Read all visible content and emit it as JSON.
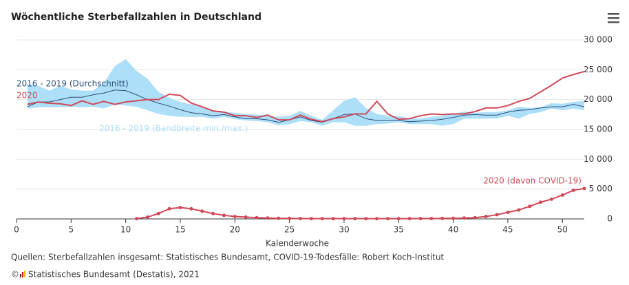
{
  "chart_data": {
    "type": "line",
    "title": "Wöchentliche Sterbefallzahlen in Deutschland",
    "xlabel": "Kalenderwoche",
    "source": "Quellen: Sterbefallzahlen insgesamt: Statistisches Bundesamt, COVID-19-Todesfälle: Robert Koch-Institut",
    "copyright_symbol": "©",
    "credit": "Statistisches Bundesamt (Destatis), 2021",
    "x": [
      1,
      2,
      3,
      4,
      5,
      6,
      7,
      8,
      9,
      10,
      11,
      12,
      13,
      14,
      15,
      16,
      17,
      18,
      19,
      20,
      21,
      22,
      23,
      24,
      25,
      26,
      27,
      28,
      29,
      30,
      31,
      32,
      33,
      34,
      35,
      36,
      37,
      38,
      39,
      40,
      41,
      42,
      43,
      44,
      45,
      46,
      47,
      48,
      49,
      50,
      51,
      52
    ],
    "xlim": [
      0,
      52
    ],
    "xticks": [
      0,
      5,
      10,
      15,
      20,
      25,
      30,
      35,
      40,
      45,
      50
    ],
    "ylim": [
      0,
      30000
    ],
    "yticks": [
      0,
      {
        "value": 5000,
        "label": "5 000"
      },
      {
        "value": 10000,
        "label": "10 000"
      },
      {
        "value": 15000,
        "label": "15 000"
      },
      {
        "value": 20000,
        "label": "20 000"
      },
      {
        "value": 25000,
        "label": "25 000"
      },
      {
        "value": 30000,
        "label": "30 000"
      }
    ],
    "grid": true,
    "band": {
      "name": "2016 - 2019 (Bandbreite min./max.)",
      "color": "#aedff8",
      "low": [
        18500,
        18700,
        18700,
        18700,
        18800,
        18700,
        18800,
        18500,
        19200,
        19000,
        18800,
        18200,
        17600,
        17300,
        17100,
        17100,
        17100,
        16800,
        17100,
        16700,
        16500,
        16400,
        16200,
        15700,
        15900,
        16400,
        16200,
        15600,
        16200,
        16200,
        15600,
        15600,
        15900,
        16000,
        16200,
        15900,
        15900,
        15900,
        15600,
        15900,
        16800,
        16800,
        16800,
        16800,
        17300,
        16800,
        17600,
        17900,
        18500,
        18200,
        18500,
        18200
      ],
      "high": [
        22600,
        22300,
        21500,
        22300,
        21700,
        21500,
        21500,
        22800,
        25600,
        26800,
        24800,
        23500,
        21300,
        20300,
        19600,
        19200,
        18800,
        18200,
        18000,
        17800,
        17600,
        17500,
        17300,
        17100,
        17300,
        18100,
        17300,
        16600,
        18200,
        19800,
        20400,
        18600,
        17600,
        17300,
        17300,
        16800,
        16800,
        17100,
        17300,
        17600,
        18000,
        17800,
        17900,
        17900,
        18200,
        18800,
        18600,
        18700,
        19400,
        19300,
        19600,
        19800
      ]
    },
    "series": [
      {
        "name": "2016 - 2019 (Durchschnitt)",
        "color": "#2b4f78",
        "values": [
          18800,
          19600,
          19600,
          20000,
          20400,
          20400,
          20800,
          21100,
          21600,
          21500,
          20800,
          20000,
          19400,
          18900,
          18300,
          17800,
          17600,
          17300,
          17500,
          17100,
          16800,
          16800,
          16600,
          16200,
          16600,
          17100,
          16500,
          16200,
          16800,
          17500,
          17600,
          16800,
          16500,
          16500,
          16500,
          16300,
          16400,
          16500,
          16700,
          17000,
          17400,
          17500,
          17400,
          17400,
          17900,
          18200,
          18300,
          18600,
          18800,
          18800,
          19200,
          18800
        ]
      },
      {
        "name": "2020",
        "color": "#d04858",
        "values": [
          19200,
          19600,
          19400,
          19300,
          19000,
          19800,
          19200,
          19700,
          19200,
          19600,
          19800,
          20000,
          20000,
          20900,
          20700,
          19400,
          18800,
          18100,
          17900,
          17300,
          17300,
          17000,
          17400,
          16600,
          16600,
          17400,
          16700,
          16300,
          16800,
          17100,
          17600,
          17600,
          19700,
          17600,
          16700,
          16800,
          17300,
          17600,
          17500,
          17600,
          17600,
          18000,
          18600,
          18600,
          19000,
          19700,
          20200,
          21300,
          22400,
          23600,
          24200,
          24700
        ]
      },
      {
        "name": "2020 (davon COVID-19)",
        "color": "#d04858",
        "markers": true,
        "values": [
          null,
          null,
          null,
          null,
          null,
          null,
          null,
          null,
          null,
          null,
          50,
          300,
          900,
          1700,
          1900,
          1700,
          1300,
          900,
          600,
          400,
          300,
          200,
          150,
          100,
          80,
          60,
          50,
          50,
          50,
          50,
          50,
          50,
          50,
          50,
          50,
          50,
          60,
          70,
          80,
          100,
          150,
          200,
          400,
          700,
          1100,
          1500,
          2100,
          2800,
          3300,
          4000,
          4800,
          5100
        ]
      }
    ]
  }
}
